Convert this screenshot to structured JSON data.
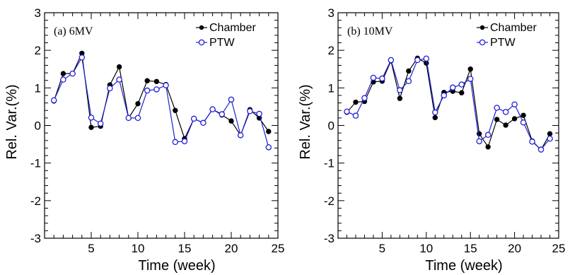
{
  "colors": {
    "chamber": "#000000",
    "ptw": "#1f1fd6"
  },
  "chart_data": [
    {
      "type": "line",
      "panel_label": "(a) 6MV",
      "xlabel": "Time (week)",
      "ylabel": "Rel. Var.(%)",
      "xlim": [
        0,
        25
      ],
      "ylim": [
        -3,
        3
      ],
      "xticks": [
        5,
        10,
        15,
        20,
        25
      ],
      "yticks": [
        -3,
        -2,
        -1,
        0,
        1,
        2,
        3
      ],
      "legend": [
        "Chamber",
        "PTW"
      ],
      "legend_position": "top-right",
      "grid": false,
      "x": [
        1,
        2,
        3,
        4,
        5,
        6,
        7,
        8,
        9,
        10,
        11,
        12,
        13,
        14,
        15,
        16,
        17,
        18,
        19,
        20,
        21,
        22,
        23,
        24
      ],
      "series": [
        {
          "name": "Chamber",
          "marker": "filled-circle",
          "values": [
            0.65,
            1.38,
            1.38,
            1.92,
            -0.05,
            -0.02,
            1.08,
            1.56,
            0.2,
            0.58,
            1.19,
            1.17,
            1.09,
            0.4,
            -0.35,
            0.18,
            0.07,
            0.43,
            0.28,
            0.12,
            -0.26,
            0.42,
            0.2,
            -0.16
          ]
        },
        {
          "name": "PTW",
          "marker": "open-circle",
          "values": [
            0.67,
            1.22,
            1.38,
            1.81,
            0.21,
            0.05,
            0.99,
            1.22,
            0.2,
            0.2,
            0.93,
            0.96,
            1.07,
            -0.44,
            -0.42,
            0.18,
            0.07,
            0.43,
            0.3,
            0.69,
            -0.26,
            0.38,
            0.31,
            -0.58
          ]
        }
      ]
    },
    {
      "type": "line",
      "panel_label": "(b) 10MV",
      "xlabel": "Time (week)",
      "ylabel": "Rel. Var.(%)",
      "xlim": [
        0,
        25
      ],
      "ylim": [
        -3,
        3
      ],
      "xticks": [
        5,
        10,
        15,
        20,
        25
      ],
      "yticks": [
        -3,
        -2,
        -1,
        0,
        1,
        2,
        3
      ],
      "legend": [
        "Chamber",
        "PTW"
      ],
      "legend_position": "top-right",
      "grid": false,
      "x": [
        1,
        2,
        3,
        4,
        5,
        6,
        7,
        8,
        9,
        10,
        11,
        12,
        13,
        14,
        15,
        16,
        17,
        18,
        19,
        20,
        21,
        22,
        23,
        24
      ],
      "series": [
        {
          "name": "Chamber",
          "marker": "filled-circle",
          "values": [
            0.35,
            0.62,
            0.64,
            1.16,
            1.18,
            1.72,
            0.72,
            1.45,
            1.79,
            1.66,
            0.21,
            0.88,
            0.91,
            0.87,
            1.5,
            -0.22,
            -0.57,
            0.16,
            0.01,
            0.18,
            0.27,
            -0.41,
            -0.65,
            -0.22
          ]
        },
        {
          "name": "PTW",
          "marker": "open-circle",
          "values": [
            0.37,
            0.26,
            0.73,
            1.27,
            1.25,
            1.74,
            0.94,
            1.18,
            1.74,
            1.78,
            0.35,
            0.8,
            1.01,
            1.09,
            1.24,
            -0.42,
            -0.25,
            0.47,
            0.36,
            0.56,
            0.08,
            -0.43,
            -0.64,
            -0.35
          ]
        }
      ]
    }
  ]
}
